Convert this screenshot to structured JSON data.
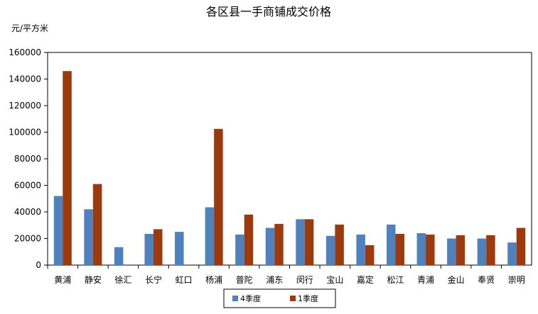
{
  "chart_data": {
    "type": "bar",
    "title": "各区县一手商铺成交价格",
    "ylabel": "元/平方米",
    "xlabel": "",
    "categories": [
      "黄浦",
      "静安",
      "徐汇",
      "长宁",
      "虹口",
      "杨浦",
      "普陀",
      "浦东",
      "闵行",
      "宝山",
      "嘉定",
      "松江",
      "青浦",
      "金山",
      "奉贤",
      "崇明"
    ],
    "series": [
      {
        "name": "4季度",
        "color": "#4f81bd",
        "values": [
          52000,
          42000,
          13500,
          23500,
          25000,
          43500,
          23000,
          28000,
          34500,
          22000,
          23000,
          30500,
          24000,
          20000,
          20000,
          17000
        ]
      },
      {
        "name": "1季度",
        "color": "#9c3a0d",
        "values": [
          146000,
          61000,
          null,
          27000,
          null,
          102500,
          38000,
          31000,
          34500,
          30500,
          15000,
          23500,
          23000,
          22500,
          22500,
          28000
        ]
      }
    ],
    "ylim": [
      0,
      160000
    ],
    "yticks": [
      0,
      20000,
      40000,
      60000,
      80000,
      100000,
      120000,
      140000,
      160000
    ],
    "grid": false,
    "legend_position": "bottom"
  }
}
